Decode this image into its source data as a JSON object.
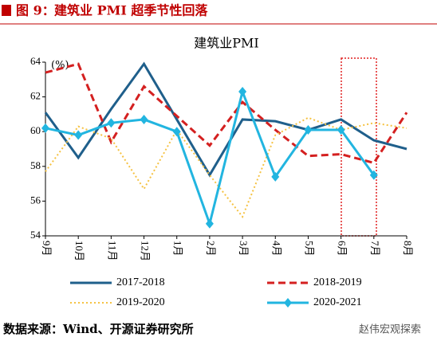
{
  "header": {
    "figure": "图 9：",
    "title": "建筑业 PMI 超季节性回落"
  },
  "chart_data": {
    "type": "line",
    "title": "建筑业PMI",
    "unit_label": "(%)",
    "categories": [
      "9月",
      "10月",
      "11月",
      "12月",
      "1月",
      "2月",
      "3月",
      "4月",
      "5月",
      "6月",
      "7月",
      "8月"
    ],
    "ylim": [
      54,
      64
    ],
    "yticks": [
      54,
      56,
      58,
      60,
      62,
      64
    ],
    "series": [
      {
        "name": "2017-2018",
        "color": "#1f5f8b",
        "style": "solid",
        "values": [
          61.1,
          58.5,
          61.3,
          63.9,
          60.7,
          57.5,
          60.7,
          60.6,
          60.1,
          60.7,
          59.5,
          59.0
        ]
      },
      {
        "name": "2018-2019",
        "color": "#d42020",
        "style": "dashed",
        "values": [
          63.4,
          63.9,
          59.4,
          62.6,
          60.9,
          59.2,
          61.7,
          60.1,
          58.6,
          58.7,
          58.2,
          61.1
        ]
      },
      {
        "name": "2019-2020",
        "color": "#f5c242",
        "style": "dotted",
        "values": [
          57.7,
          60.3,
          59.6,
          56.7,
          60.1,
          57.5,
          55.1,
          59.8,
          60.8,
          60.1,
          60.5,
          60.2
        ]
      },
      {
        "name": "2020-2021",
        "color": "#22b5e0",
        "style": "solid",
        "marker": "diamond",
        "values": [
          60.2,
          59.8,
          60.5,
          60.7,
          60.0,
          54.7,
          62.3,
          57.4,
          60.1,
          60.1,
          57.5,
          null
        ]
      }
    ]
  },
  "footer": {
    "source": "数据来源：Wind、开源证券研究所",
    "watermark": "赵伟宏观探索"
  }
}
